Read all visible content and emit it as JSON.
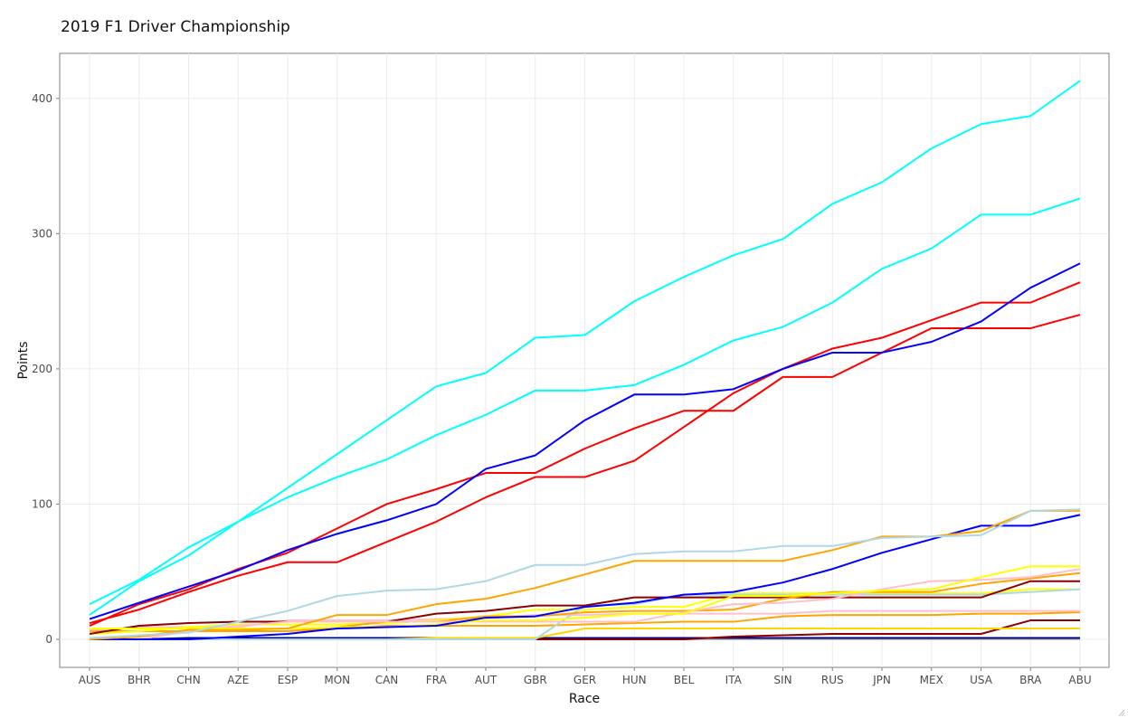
{
  "chart_data": {
    "type": "line",
    "title": "2019 F1 Driver Championship",
    "xlabel": "Race",
    "ylabel": "Points",
    "ylim": [
      -20,
      435
    ],
    "yticks": [
      0,
      100,
      200,
      300,
      400
    ],
    "grid": true,
    "legend": "none",
    "categories": [
      "AUS",
      "BHR",
      "CHN",
      "AZE",
      "ESP",
      "MON",
      "CAN",
      "FRA",
      "AUT",
      "GBR",
      "GER",
      "HUN",
      "BEL",
      "ITA",
      "SIN",
      "RUS",
      "JPN",
      "MEX",
      "USA",
      "BRA",
      "ABU"
    ],
    "series": [
      {
        "color": "#00ffff",
        "values": [
          26,
          44,
          68,
          87,
          112,
          137,
          162,
          187,
          197,
          223,
          225,
          250,
          268,
          284,
          296,
          322,
          338,
          363,
          381,
          387,
          413
        ]
      },
      {
        "color": "#00ffff",
        "values": [
          18,
          43,
          62,
          87,
          105,
          120,
          133,
          151,
          166,
          184,
          184,
          188,
          203,
          221,
          231,
          249,
          274,
          289,
          314,
          314,
          326
        ]
      },
      {
        "color": "#0000ff",
        "values": [
          15,
          27,
          39,
          51,
          66,
          78,
          88,
          100,
          126,
          136,
          162,
          181,
          181,
          185,
          200,
          212,
          212,
          220,
          235,
          260,
          278
        ]
      },
      {
        "color": "#ff0000",
        "values": [
          10,
          26,
          37,
          52,
          64,
          82,
          100,
          111,
          123,
          123,
          141,
          156,
          169,
          169,
          194,
          194,
          212,
          230,
          230,
          230,
          240
        ]
      },
      {
        "color": "#ff0000",
        "values": [
          12,
          22,
          35,
          47,
          57,
          57,
          72,
          87,
          105,
          120,
          120,
          132,
          157,
          182,
          200,
          215,
          223,
          236,
          249,
          249,
          264
        ]
      },
      {
        "color": "#add8e6",
        "values": [
          1,
          3,
          5,
          13,
          21,
          32,
          36,
          37,
          43,
          55,
          55,
          63,
          65,
          65,
          69,
          69,
          75,
          76,
          77,
          95,
          96
        ]
      },
      {
        "color": "#ffa500",
        "values": [
          0,
          2,
          7,
          7,
          8,
          18,
          18,
          26,
          30,
          38,
          48,
          58,
          58,
          58,
          58,
          66,
          76,
          76,
          80,
          95,
          95
        ]
      },
      {
        "color": "#0000ff",
        "values": [
          0,
          0,
          0,
          2,
          4,
          8,
          9,
          10,
          16,
          17,
          24,
          27,
          33,
          35,
          42,
          52,
          64,
          74,
          84,
          84,
          92
        ]
      },
      {
        "color": "#ffff00",
        "values": [
          8,
          8,
          8,
          8,
          8,
          9,
          9,
          11,
          14,
          14,
          16,
          19,
          19,
          32,
          32,
          34,
          36,
          37,
          46,
          54,
          54
        ]
      },
      {
        "color": "#ffc0cb",
        "values": [
          0,
          0,
          6,
          10,
          13,
          13,
          13,
          13,
          13,
          13,
          13,
          13,
          20,
          26,
          27,
          30,
          37,
          43,
          44,
          46,
          52
        ]
      },
      {
        "color": "#ffa500",
        "values": [
          0,
          2,
          6,
          6,
          6,
          9,
          13,
          13,
          17,
          17,
          20,
          21,
          21,
          22,
          30,
          35,
          35,
          35,
          41,
          45,
          49
        ]
      },
      {
        "color": "#8b0000",
        "values": [
          4,
          10,
          12,
          13,
          13,
          13,
          13,
          19,
          21,
          25,
          25,
          31,
          31,
          31,
          31,
          31,
          31,
          31,
          31,
          43,
          43
        ]
      },
      {
        "color": "#add8e6",
        "values": [
          0,
          0,
          0,
          0,
          0,
          0,
          0,
          0,
          0,
          0,
          25,
          26,
          33,
          33,
          33,
          33,
          33,
          33,
          33,
          35,
          37
        ]
      },
      {
        "color": "#ffff00",
        "values": [
          4,
          6,
          9,
          11,
          11,
          11,
          12,
          14,
          17,
          22,
          22,
          24,
          24,
          34,
          34,
          34,
          34,
          34,
          34,
          37,
          37
        ]
      },
      {
        "color": "#ffc0cb",
        "values": [
          7,
          9,
          9,
          9,
          14,
          14,
          14,
          15,
          16,
          18,
          18,
          19,
          19,
          19,
          19,
          21,
          21,
          21,
          21,
          21,
          21
        ]
      },
      {
        "color": "#ffa500",
        "values": [
          6,
          6,
          6,
          6,
          6,
          8,
          10,
          10,
          10,
          10,
          11,
          12,
          13,
          13,
          17,
          18,
          18,
          18,
          19,
          19,
          20
        ]
      },
      {
        "color": "#ffd700",
        "values": [
          0,
          0,
          0,
          0,
          0,
          0,
          0,
          1,
          1,
          1,
          8,
          8,
          8,
          8,
          8,
          8,
          8,
          8,
          8,
          8,
          8
        ]
      },
      {
        "color": "#8b0000",
        "values": [
          0,
          0,
          0,
          0,
          0,
          0,
          0,
          0,
          0,
          0,
          0,
          0,
          0,
          2,
          3,
          4,
          4,
          4,
          4,
          14,
          14
        ]
      },
      {
        "color": "#000080",
        "values": [
          0,
          0,
          1,
          1,
          1,
          1,
          1,
          1,
          1,
          1,
          1,
          1,
          1,
          1,
          1,
          1,
          1,
          1,
          1,
          1,
          1
        ]
      },
      {
        "color": "#bebebe",
        "values": [
          0,
          0,
          0,
          0,
          0,
          0,
          0,
          0,
          0,
          0,
          0,
          0,
          0,
          0,
          0,
          0,
          0,
          0,
          0,
          0,
          0
        ]
      }
    ]
  }
}
